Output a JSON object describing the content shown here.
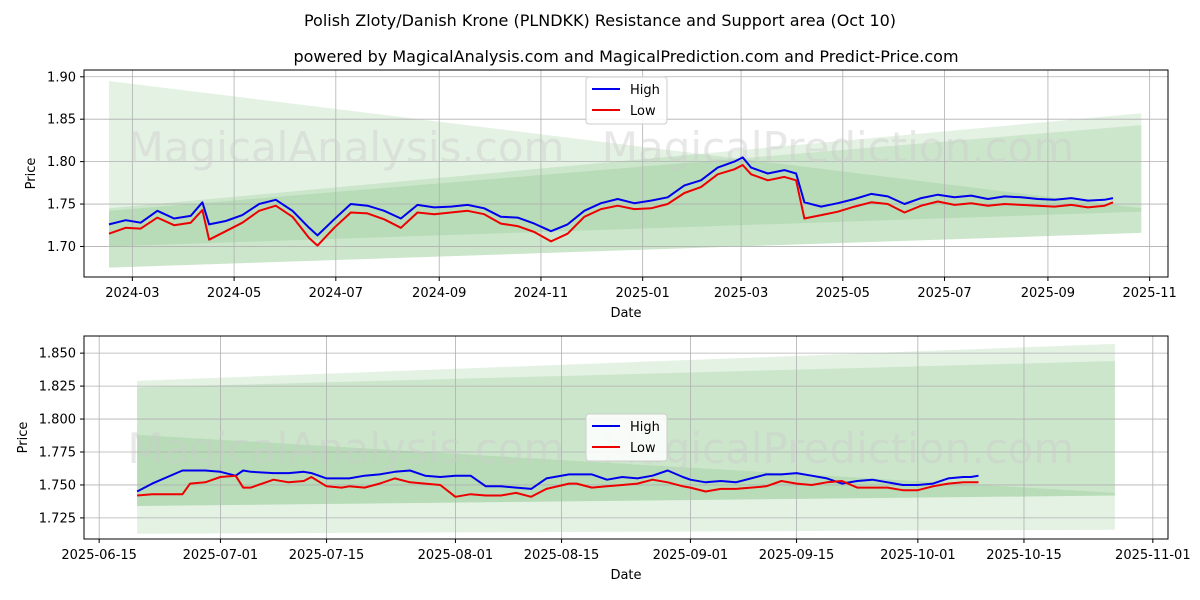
{
  "title": "Polish Zloty/Danish Krone (PLNDKK) Resistance and Support area (Oct 10)",
  "subtitle": "powered by MagicalAnalysis.com and MagicalPrediction.com and Predict-Price.com",
  "watermark": [
    "MagicalAnalysis.com",
    "MagicalPrediction.com"
  ],
  "colors": {
    "high": "#0000ee",
    "low": "#ee0000",
    "band": "#2e9a2e",
    "grid": "#b0b0b0"
  },
  "chart_data": [
    {
      "type": "line",
      "name": "full-range",
      "xlabel": "Date",
      "ylabel": "Price",
      "xlim": [
        "2024-02-01",
        "2025-11-12"
      ],
      "ylim": [
        1.664,
        1.908
      ],
      "xticks": [
        "2024-03-01",
        "2024-05-01",
        "2024-07-01",
        "2024-09-01",
        "2024-11-01",
        "2025-01-01",
        "2025-03-01",
        "2025-05-01",
        "2025-07-01",
        "2025-09-01",
        "2025-11-01"
      ],
      "xtick_labels": [
        "2024-03",
        "2024-05",
        "2024-07",
        "2024-09",
        "2024-11",
        "2025-01",
        "2025-03",
        "2025-05",
        "2025-07",
        "2025-09",
        "2025-11"
      ],
      "yticks": [
        1.7,
        1.75,
        1.8,
        1.85,
        1.9
      ],
      "ytick_labels": [
        "1.70",
        "1.75",
        "1.80",
        "1.85",
        "1.90"
      ],
      "legend": {
        "position": "top-center",
        "entries": [
          "High",
          "Low"
        ]
      },
      "bands": [
        {
          "name": "support-resistance-outer",
          "x": [
            "2024-02-16",
            "2025-10-27"
          ],
          "upper": [
            1.895,
            1.745
          ],
          "lower": [
            1.675,
            1.716
          ],
          "opacity": 0.13
        },
        {
          "name": "support-resistance-rising",
          "x": [
            "2024-02-16",
            "2025-10-27"
          ],
          "upper": [
            1.745,
            1.857
          ],
          "lower": [
            1.675,
            1.716
          ],
          "opacity": 0.13
        },
        {
          "name": "support-resistance-inner",
          "x": [
            "2024-02-16",
            "2025-10-27"
          ],
          "upper": [
            1.742,
            1.843
          ],
          "lower": [
            1.7,
            1.741
          ],
          "opacity": 0.13
        }
      ],
      "series": [
        {
          "name": "High",
          "x": [
            "2024-02-16",
            "2024-02-26",
            "2024-03-06",
            "2024-03-16",
            "2024-03-26",
            "2024-04-05",
            "2024-04-12",
            "2024-04-16",
            "2024-04-26",
            "2024-05-06",
            "2024-05-16",
            "2024-05-26",
            "2024-06-05",
            "2024-06-15",
            "2024-06-20",
            "2024-06-30",
            "2024-07-10",
            "2024-07-20",
            "2024-07-30",
            "2024-08-09",
            "2024-08-19",
            "2024-08-29",
            "2024-09-08",
            "2024-09-18",
            "2024-09-28",
            "2024-10-08",
            "2024-10-18",
            "2024-10-28",
            "2024-11-07",
            "2024-11-17",
            "2024-11-27",
            "2024-12-07",
            "2024-12-17",
            "2024-12-27",
            "2025-01-06",
            "2025-01-16",
            "2025-01-26",
            "2025-02-05",
            "2025-02-15",
            "2025-02-25",
            "2025-03-02",
            "2025-03-07",
            "2025-03-17",
            "2025-03-27",
            "2025-04-03",
            "2025-04-08",
            "2025-04-18",
            "2025-04-28",
            "2025-05-08",
            "2025-05-18",
            "2025-05-28",
            "2025-06-07",
            "2025-06-17",
            "2025-06-27",
            "2025-07-07",
            "2025-07-17",
            "2025-07-27",
            "2025-08-06",
            "2025-08-16",
            "2025-08-26",
            "2025-09-05",
            "2025-09-15",
            "2025-09-25",
            "2025-10-05",
            "2025-10-10"
          ],
          "values": [
            1.726,
            1.731,
            1.728,
            1.742,
            1.733,
            1.736,
            1.752,
            1.726,
            1.73,
            1.737,
            1.75,
            1.755,
            1.742,
            1.722,
            1.713,
            1.732,
            1.75,
            1.748,
            1.742,
            1.733,
            1.749,
            1.746,
            1.747,
            1.749,
            1.745,
            1.735,
            1.734,
            1.727,
            1.718,
            1.726,
            1.742,
            1.751,
            1.756,
            1.751,
            1.754,
            1.758,
            1.772,
            1.778,
            1.793,
            1.8,
            1.805,
            1.793,
            1.786,
            1.79,
            1.786,
            1.752,
            1.747,
            1.751,
            1.756,
            1.762,
            1.759,
            1.75,
            1.757,
            1.761,
            1.758,
            1.76,
            1.756,
            1.759,
            1.758,
            1.756,
            1.755,
            1.757,
            1.754,
            1.755,
            1.757
          ]
        },
        {
          "name": "Low",
          "x": [
            "2024-02-16",
            "2024-02-26",
            "2024-03-06",
            "2024-03-16",
            "2024-03-26",
            "2024-04-05",
            "2024-04-12",
            "2024-04-16",
            "2024-04-26",
            "2024-05-06",
            "2024-05-16",
            "2024-05-26",
            "2024-06-05",
            "2024-06-15",
            "2024-06-20",
            "2024-06-30",
            "2024-07-10",
            "2024-07-20",
            "2024-07-30",
            "2024-08-09",
            "2024-08-19",
            "2024-08-29",
            "2024-09-08",
            "2024-09-18",
            "2024-09-28",
            "2024-10-08",
            "2024-10-18",
            "2024-10-28",
            "2024-11-07",
            "2024-11-17",
            "2024-11-27",
            "2024-12-07",
            "2024-12-17",
            "2024-12-27",
            "2025-01-06",
            "2025-01-16",
            "2025-01-26",
            "2025-02-05",
            "2025-02-15",
            "2025-02-25",
            "2025-03-02",
            "2025-03-07",
            "2025-03-17",
            "2025-03-27",
            "2025-04-03",
            "2025-04-08",
            "2025-04-18",
            "2025-04-28",
            "2025-05-08",
            "2025-05-18",
            "2025-05-28",
            "2025-06-07",
            "2025-06-17",
            "2025-06-27",
            "2025-07-07",
            "2025-07-17",
            "2025-07-27",
            "2025-08-06",
            "2025-08-16",
            "2025-08-26",
            "2025-09-05",
            "2025-09-15",
            "2025-09-25",
            "2025-10-05",
            "2025-10-10"
          ],
          "values": [
            1.715,
            1.722,
            1.721,
            1.734,
            1.725,
            1.728,
            1.743,
            1.708,
            1.718,
            1.728,
            1.742,
            1.748,
            1.735,
            1.71,
            1.701,
            1.722,
            1.74,
            1.739,
            1.732,
            1.722,
            1.74,
            1.738,
            1.74,
            1.742,
            1.738,
            1.727,
            1.724,
            1.717,
            1.706,
            1.715,
            1.735,
            1.744,
            1.748,
            1.744,
            1.745,
            1.75,
            1.763,
            1.77,
            1.785,
            1.791,
            1.796,
            1.785,
            1.778,
            1.782,
            1.778,
            1.733,
            1.737,
            1.741,
            1.747,
            1.752,
            1.75,
            1.74,
            1.748,
            1.753,
            1.749,
            1.751,
            1.748,
            1.75,
            1.749,
            1.748,
            1.747,
            1.749,
            1.746,
            1.748,
            1.752
          ]
        }
      ]
    },
    {
      "type": "line",
      "name": "zoom-range",
      "xlabel": "Date",
      "ylabel": "Price",
      "xlim": [
        "2025-06-13",
        "2025-11-03"
      ],
      "ylim": [
        1.709,
        1.863
      ],
      "xticks": [
        "2025-06-15",
        "2025-07-01",
        "2025-07-15",
        "2025-08-01",
        "2025-08-15",
        "2025-09-01",
        "2025-09-15",
        "2025-10-01",
        "2025-10-15",
        "2025-11-01"
      ],
      "xtick_labels": [
        "2025-06-15",
        "2025-07-01",
        "2025-07-15",
        "2025-08-01",
        "2025-08-15",
        "2025-09-01",
        "2025-09-15",
        "2025-10-01",
        "2025-10-15",
        "2025-11-01"
      ],
      "yticks": [
        1.725,
        1.75,
        1.775,
        1.8,
        1.825,
        1.85
      ],
      "ytick_labels": [
        "1.725",
        "1.750",
        "1.775",
        "1.800",
        "1.825",
        "1.850"
      ],
      "legend": {
        "position": "center",
        "entries": [
          "High",
          "Low"
        ]
      },
      "bands": [
        {
          "name": "support-resistance-outer",
          "x": [
            "2025-06-20",
            "2025-10-27"
          ],
          "upper": [
            1.829,
            1.857
          ],
          "lower": [
            1.713,
            1.716
          ],
          "opacity": 0.13
        },
        {
          "name": "support-resistance-mid",
          "x": [
            "2025-06-20",
            "2025-10-27"
          ],
          "upper": [
            1.824,
            1.844
          ],
          "lower": [
            1.734,
            1.742
          ],
          "opacity": 0.13
        },
        {
          "name": "support-resistance-inner",
          "x": [
            "2025-06-20",
            "2025-10-27"
          ],
          "upper": [
            1.788,
            1.744
          ],
          "lower": [
            1.734,
            1.742
          ],
          "opacity": 0.13
        }
      ],
      "series": [
        {
          "name": "High",
          "x": [
            "2025-06-20",
            "2025-06-22",
            "2025-06-26",
            "2025-06-27",
            "2025-06-29",
            "2025-07-01",
            "2025-07-03",
            "2025-07-04",
            "2025-07-05",
            "2025-07-08",
            "2025-07-10",
            "2025-07-12",
            "2025-07-13",
            "2025-07-15",
            "2025-07-17",
            "2025-07-18",
            "2025-07-20",
            "2025-07-22",
            "2025-07-24",
            "2025-07-26",
            "2025-07-28",
            "2025-07-30",
            "2025-08-01",
            "2025-08-03",
            "2025-08-05",
            "2025-08-07",
            "2025-08-09",
            "2025-08-11",
            "2025-08-13",
            "2025-08-16",
            "2025-08-17",
            "2025-08-19",
            "2025-08-21",
            "2025-08-23",
            "2025-08-25",
            "2025-08-27",
            "2025-08-29",
            "2025-08-31",
            "2025-09-01",
            "2025-09-03",
            "2025-09-05",
            "2025-09-07",
            "2025-09-09",
            "2025-09-11",
            "2025-09-13",
            "2025-09-15",
            "2025-09-17",
            "2025-09-19",
            "2025-09-21",
            "2025-09-23",
            "2025-09-25",
            "2025-09-27",
            "2025-09-29",
            "2025-10-01",
            "2025-10-03",
            "2025-10-05",
            "2025-10-07",
            "2025-10-08",
            "2025-10-09"
          ],
          "values": [
            1.745,
            1.751,
            1.761,
            1.761,
            1.761,
            1.76,
            1.757,
            1.761,
            1.76,
            1.759,
            1.759,
            1.76,
            1.759,
            1.755,
            1.755,
            1.755,
            1.757,
            1.758,
            1.76,
            1.761,
            1.757,
            1.756,
            1.757,
            1.757,
            1.749,
            1.749,
            1.748,
            1.747,
            1.755,
            1.758,
            1.758,
            1.758,
            1.754,
            1.756,
            1.755,
            1.757,
            1.761,
            1.756,
            1.754,
            1.752,
            1.753,
            1.752,
            1.755,
            1.758,
            1.758,
            1.759,
            1.757,
            1.755,
            1.751,
            1.753,
            1.754,
            1.752,
            1.75,
            1.75,
            1.751,
            1.755,
            1.756,
            1.756,
            1.757
          ]
        },
        {
          "name": "Low",
          "x": [
            "2025-06-20",
            "2025-06-22",
            "2025-06-26",
            "2025-06-27",
            "2025-06-29",
            "2025-07-01",
            "2025-07-03",
            "2025-07-04",
            "2025-07-05",
            "2025-07-08",
            "2025-07-10",
            "2025-07-12",
            "2025-07-13",
            "2025-07-15",
            "2025-07-17",
            "2025-07-18",
            "2025-07-20",
            "2025-07-22",
            "2025-07-24",
            "2025-07-26",
            "2025-07-28",
            "2025-07-30",
            "2025-08-01",
            "2025-08-03",
            "2025-08-05",
            "2025-08-07",
            "2025-08-09",
            "2025-08-11",
            "2025-08-13",
            "2025-08-16",
            "2025-08-17",
            "2025-08-19",
            "2025-08-21",
            "2025-08-23",
            "2025-08-25",
            "2025-08-27",
            "2025-08-29",
            "2025-08-31",
            "2025-09-01",
            "2025-09-03",
            "2025-09-05",
            "2025-09-07",
            "2025-09-09",
            "2025-09-11",
            "2025-09-13",
            "2025-09-15",
            "2025-09-17",
            "2025-09-19",
            "2025-09-21",
            "2025-09-23",
            "2025-09-25",
            "2025-09-27",
            "2025-09-29",
            "2025-10-01",
            "2025-10-03",
            "2025-10-05",
            "2025-10-07",
            "2025-10-08",
            "2025-10-09"
          ],
          "values": [
            1.742,
            1.743,
            1.743,
            1.751,
            1.752,
            1.756,
            1.757,
            1.748,
            1.748,
            1.754,
            1.752,
            1.753,
            1.756,
            1.749,
            1.748,
            1.749,
            1.748,
            1.751,
            1.755,
            1.752,
            1.751,
            1.75,
            1.741,
            1.743,
            1.742,
            1.742,
            1.744,
            1.741,
            1.747,
            1.751,
            1.751,
            1.748,
            1.749,
            1.75,
            1.751,
            1.754,
            1.752,
            1.749,
            1.748,
            1.745,
            1.747,
            1.747,
            1.748,
            1.749,
            1.753,
            1.751,
            1.75,
            1.752,
            1.753,
            1.748,
            1.748,
            1.748,
            1.746,
            1.746,
            1.749,
            1.751,
            1.752,
            1.752,
            1.752
          ]
        }
      ]
    }
  ]
}
